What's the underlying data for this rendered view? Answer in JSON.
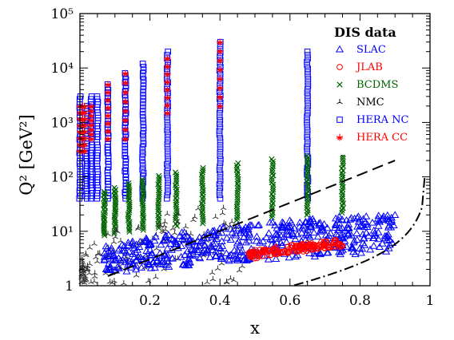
{
  "chart_data": {
    "type": "scatter",
    "xlabel": "x",
    "ylabel": "Q² [GeV²]",
    "xlim": [
      0,
      1
    ],
    "ylim": [
      1,
      100000
    ],
    "yscale": "log",
    "x_ticks": [
      0.2,
      0.4,
      0.6,
      0.8,
      1
    ],
    "x_tick_labels": [
      "0.2",
      "0.4",
      "0.6",
      "0.8",
      "1"
    ],
    "y_ticks": [
      1,
      10,
      100,
      1000,
      10000,
      100000
    ],
    "y_tick_labels": [
      "1",
      "10¹",
      "10²",
      "10³",
      "10⁴",
      "10⁵"
    ],
    "grid": false,
    "legend_title": "DIS data",
    "legend_position": "top-right",
    "series": [
      {
        "name": "SLAC",
        "marker": "triangle",
        "color": "#0000ff",
        "description": "dense band of points spanning x from about 0.07 to 0.9, Q² roughly 1.5 to 20 GeV²",
        "x_range": [
          0.07,
          0.9
        ],
        "q2_range": [
          1.5,
          20
        ]
      },
      {
        "name": "JLAB",
        "marker": "circle",
        "color": "#ff0000",
        "description": "compact band at x ≈ 0.48–0.75, Q² ≈ 3–7 GeV²",
        "x_range": [
          0.48,
          0.75
        ],
        "q2_range": [
          3,
          7
        ]
      },
      {
        "name": "BCDMS",
        "marker": "x",
        "color": "#006400",
        "columns_x": [
          0.07,
          0.1,
          0.14,
          0.18,
          0.225,
          0.275,
          0.35,
          0.45,
          0.55,
          0.65,
          0.75
        ],
        "q2_range": [
          7,
          260
        ]
      },
      {
        "name": "NMC",
        "marker": "tripod",
        "color": "#000000",
        "description": "low-x points, x ≈ 0.005–0.48, Q² ≈ 1–40 GeV²",
        "x_range": [
          0.005,
          0.48
        ],
        "q2_range": [
          1,
          40
        ]
      },
      {
        "name": "HERA NC",
        "marker": "square",
        "color": "#0000ff",
        "columns_x": [
          0.0,
          0.02,
          0.032,
          0.05,
          0.08,
          0.13,
          0.18,
          0.25,
          0.4,
          0.65
        ],
        "columns_q2_max": [
          3000,
          2000,
          3000,
          3000,
          5000,
          8000,
          12000,
          20000,
          30000,
          20000
        ],
        "q2_min": 40
      },
      {
        "name": "HERA CC",
        "marker": "star",
        "color": "#ff0000",
        "columns_x": [
          0.0,
          0.008,
          0.013,
          0.032,
          0.08,
          0.13,
          0.25,
          0.4
        ],
        "q2_range": [
          300,
          30000
        ]
      }
    ],
    "curves": [
      {
        "style": "dashed",
        "description": "upper kinematic boundary, rising from about (0.08, 1.5) to (0.9, 200)"
      },
      {
        "style": "dash-dot",
        "description": "lower boundary, rising from about (0.35, 1) to (1.0, 90)"
      }
    ]
  }
}
